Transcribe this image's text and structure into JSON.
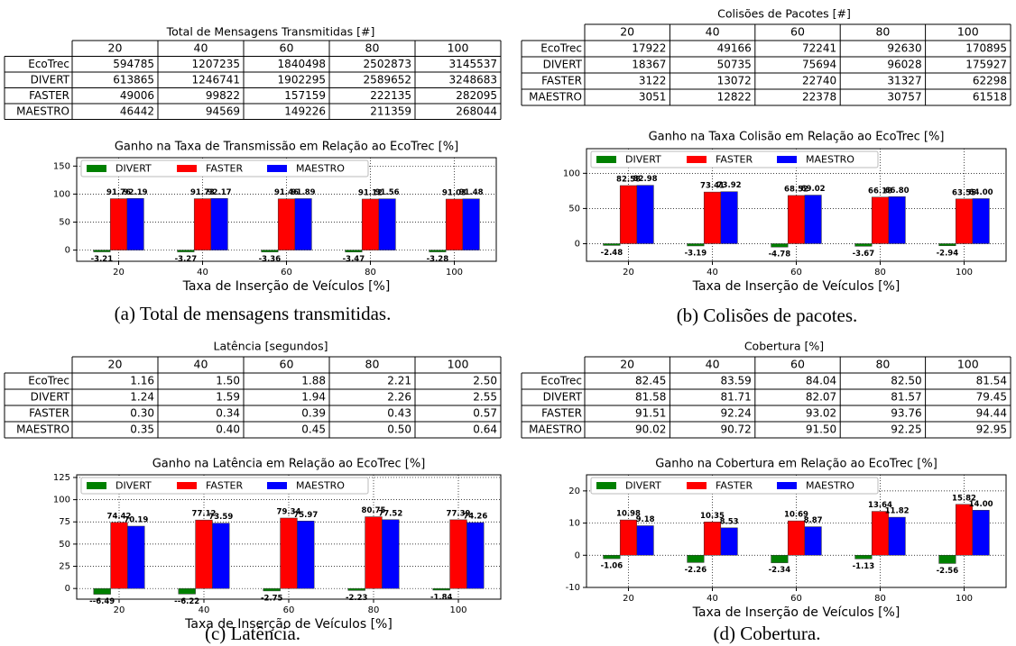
{
  "tables": [
    {
      "title": "Total de Mensagens Transmitidas [#]",
      "columns": [
        "20",
        "40",
        "60",
        "80",
        "100"
      ],
      "rows": [
        {
          "label": "EcoTrec",
          "values": [
            "594785",
            "1207235",
            "1840498",
            "2502873",
            "3145537"
          ]
        },
        {
          "label": "DIVERT",
          "values": [
            "613865",
            "1246741",
            "1902295",
            "2589652",
            "3248683"
          ]
        },
        {
          "label": "FASTER",
          "values": [
            "49006",
            "99822",
            "157159",
            "222135",
            "282095"
          ]
        },
        {
          "label": "MAESTRO",
          "values": [
            "46442",
            "94569",
            "149226",
            "211359",
            "268044"
          ]
        }
      ]
    },
    {
      "title": "Colisões de Pacotes [#]",
      "columns": [
        "20",
        "40",
        "60",
        "80",
        "100"
      ],
      "rows": [
        {
          "label": "EcoTrec",
          "values": [
            "17922",
            "49166",
            "72241",
            "92630",
            "170895"
          ]
        },
        {
          "label": "DIVERT",
          "values": [
            "18367",
            "50735",
            "75694",
            "96028",
            "175927"
          ]
        },
        {
          "label": "FASTER",
          "values": [
            "3122",
            "13072",
            "22740",
            "31327",
            "62298"
          ]
        },
        {
          "label": "MAESTRO",
          "values": [
            "3051",
            "12822",
            "22378",
            "30757",
            "61518"
          ]
        }
      ]
    },
    {
      "title": "Latência [segundos]",
      "columns": [
        "20",
        "40",
        "60",
        "80",
        "100"
      ],
      "rows": [
        {
          "label": "EcoTrec",
          "values": [
            "1.16",
            "1.50",
            "1.88",
            "2.21",
            "2.50"
          ]
        },
        {
          "label": "DIVERT",
          "values": [
            "1.24",
            "1.59",
            "1.94",
            "2.26",
            "2.55"
          ]
        },
        {
          "label": "FASTER",
          "values": [
            "0.30",
            "0.34",
            "0.39",
            "0.43",
            "0.57"
          ]
        },
        {
          "label": "MAESTRO",
          "values": [
            "0.35",
            "0.40",
            "0.45",
            "0.50",
            "0.64"
          ]
        }
      ]
    },
    {
      "title": "Cobertura [%]",
      "columns": [
        "20",
        "40",
        "60",
        "80",
        "100"
      ],
      "rows": [
        {
          "label": "EcoTrec",
          "values": [
            "82.45",
            "83.59",
            "84.04",
            "82.50",
            "81.54"
          ]
        },
        {
          "label": "DIVERT",
          "values": [
            "81.58",
            "81.71",
            "82.07",
            "81.57",
            "79.45"
          ]
        },
        {
          "label": "FASTER",
          "values": [
            "91.51",
            "92.24",
            "93.02",
            "93.76",
            "94.44"
          ]
        },
        {
          "label": "MAESTRO",
          "values": [
            "90.02",
            "90.72",
            "91.50",
            "92.25",
            "92.95"
          ]
        }
      ]
    }
  ],
  "chart_data": [
    {
      "type": "bar",
      "title": "Ganho na Taxa de Transmissão em Relação ao EcoTrec [%]",
      "x_label": "Taxa de Inserção de Veículos [%]",
      "categories": [
        "20",
        "40",
        "60",
        "80",
        "100"
      ],
      "ylim": [
        -20,
        165
      ],
      "yticks": [
        0,
        50,
        100,
        150
      ],
      "grid": true,
      "legend": "upper left",
      "series": [
        {
          "name": "DIVERT",
          "color": "#008000",
          "values": [
            -3.21,
            -3.27,
            -3.36,
            -3.47,
            -3.28
          ]
        },
        {
          "name": "FASTER",
          "color": "#ff0000",
          "values": [
            91.76,
            91.73,
            91.46,
            91.12,
            91.03
          ]
        },
        {
          "name": "MAESTRO",
          "color": "#0000ff",
          "values": [
            92.19,
            92.17,
            91.89,
            91.56,
            91.48
          ]
        }
      ]
    },
    {
      "type": "bar",
      "title": "Ganho na Taxa Colisão em Relação ao EcoTrec [%]",
      "x_label": "Taxa de Inserção de Veículos [%]",
      "categories": [
        "20",
        "40",
        "60",
        "80",
        "100"
      ],
      "ylim": [
        -25,
        135
      ],
      "yticks": [
        0,
        50,
        100
      ],
      "grid": true,
      "legend": "upper left",
      "series": [
        {
          "name": "DIVERT",
          "color": "#008000",
          "values": [
            -2.48,
            -3.19,
            -4.78,
            -3.67,
            -2.94
          ]
        },
        {
          "name": "FASTER",
          "color": "#ff0000",
          "values": [
            82.58,
            73.41,
            68.52,
            66.18,
            63.55
          ]
        },
        {
          "name": "MAESTRO",
          "color": "#0000ff",
          "values": [
            82.98,
            73.92,
            69.02,
            66.8,
            64
          ],
          "value_labels": [
            "82.98",
            "73.92",
            "69.02",
            "66.80",
            "64.00"
          ]
        }
      ]
    },
    {
      "type": "bar",
      "title": "Ganho na Latência em Relação ao EcoTrec [%]",
      "x_label": "Taxa de Inserção de Veículos [%]",
      "categories": [
        "20",
        "40",
        "60",
        "80",
        "100"
      ],
      "ylim": [
        -12,
        128
      ],
      "yticks": [
        0,
        25,
        50,
        75,
        100,
        125
      ],
      "grid": true,
      "legend": "upper left",
      "series": [
        {
          "name": "DIVERT",
          "color": "#008000",
          "values": [
            -6.49,
            -6.22,
            -2.75,
            -2.23,
            -1.84
          ],
          "value_labels": [
            "--6.49",
            "--6.22",
            "-2.75",
            "-2.23",
            "-1.84"
          ]
        },
        {
          "name": "FASTER",
          "color": "#ff0000",
          "values": [
            74.42,
            77.12,
            79.34,
            80.75,
            77.39
          ]
        },
        {
          "name": "MAESTRO",
          "color": "#0000ff",
          "values": [
            70.19,
            73.59,
            75.97,
            77.52,
            74.26
          ]
        }
      ]
    },
    {
      "type": "bar",
      "title": "Ganho na Cobertura em Relação ao EcoTrec [%]",
      "x_label": "Taxa de Inserção de Veículos [%]",
      "categories": [
        "20",
        "40",
        "60",
        "80",
        "100"
      ],
      "ylim": [
        -10,
        25
      ],
      "yticks": [
        -10,
        0,
        10,
        20
      ],
      "grid": true,
      "legend": "upper left",
      "series": [
        {
          "name": "DIVERT",
          "color": "#008000",
          "values": [
            -1.06,
            -2.26,
            -2.34,
            -1.13,
            -2.56
          ]
        },
        {
          "name": "FASTER",
          "color": "#ff0000",
          "values": [
            10.98,
            10.35,
            10.69,
            13.64,
            15.82
          ]
        },
        {
          "name": "MAESTRO",
          "color": "#0000ff",
          "values": [
            9.18,
            8.53,
            8.87,
            11.82,
            14
          ],
          "value_labels": [
            "9.18",
            "8.53",
            "8.87",
            "11.82",
            "14.00"
          ]
        }
      ]
    }
  ],
  "captions": [
    "(a) Total de mensagens transmitidas.",
    "(b) Colisões de pacotes.",
    "(c) Latência.",
    "(d) Cobertura."
  ]
}
